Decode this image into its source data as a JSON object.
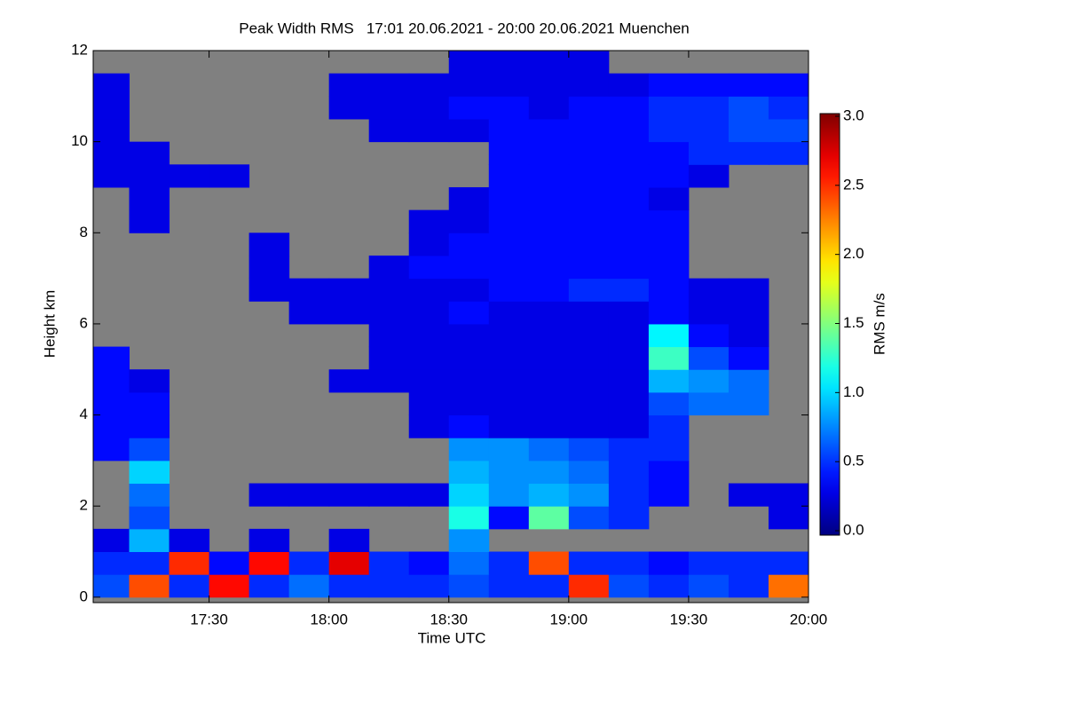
{
  "chart_data": {
    "type": "heatmap",
    "title": "Peak Width RMS   17:01 20.06.2021 - 20:00 20.06.2021 Muenchen",
    "x_label": "Time UTC",
    "y_label": "Height km",
    "colormap": "jet",
    "missing_color": "#808080",
    "xlim": [
      17.0167,
      20.0
    ],
    "xticks": [
      {
        "value": 17.5,
        "label": "17:30"
      },
      {
        "value": 18.0,
        "label": "18:00"
      },
      {
        "value": 18.5,
        "label": "18:30"
      },
      {
        "value": 19.0,
        "label": "19:00"
      },
      {
        "value": 19.5,
        "label": "19:30"
      },
      {
        "value": 20.0,
        "label": "20:00"
      }
    ],
    "ylim": [
      -0.12,
      12
    ],
    "yticks": [
      0,
      2,
      4,
      6,
      8,
      10,
      12
    ],
    "x": [
      17.0833,
      17.25,
      17.4167,
      17.5833,
      17.75,
      17.9167,
      18.0833,
      18.25,
      18.4167,
      18.5833,
      18.75,
      18.9167,
      19.0833,
      19.25,
      19.4167,
      19.5833,
      19.75,
      19.9167
    ],
    "y": [
      0.25,
      0.75,
      1.25,
      1.75,
      2.25,
      2.75,
      3.25,
      3.75,
      4.25,
      4.75,
      5.25,
      5.75,
      6.25,
      6.75,
      7.25,
      7.75,
      8.25,
      8.75,
      9.25,
      9.75,
      10.25,
      10.75,
      11.25,
      11.75
    ],
    "z": [
      [
        0.6,
        2.4,
        0.5,
        2.6,
        0.5,
        0.7,
        0.5,
        0.5,
        0.5,
        0.6,
        0.5,
        0.5,
        2.5,
        0.6,
        0.5,
        0.6,
        0.5,
        2.3
      ],
      [
        0.5,
        0.5,
        2.5,
        0.4,
        2.6,
        0.5,
        2.7,
        0.5,
        0.4,
        0.7,
        0.5,
        2.4,
        0.5,
        0.5,
        0.4,
        0.5,
        0.5,
        0.5
      ],
      [
        0.3,
        0.9,
        0.3,
        null,
        0.3,
        null,
        0.3,
        null,
        null,
        0.8,
        null,
        null,
        null,
        null,
        null,
        null,
        null,
        null
      ],
      [
        null,
        0.6,
        null,
        null,
        null,
        null,
        null,
        null,
        null,
        1.2,
        0.4,
        1.4,
        0.6,
        0.5,
        null,
        null,
        null,
        0.3
      ],
      [
        null,
        0.7,
        null,
        null,
        0.3,
        0.3,
        0.3,
        0.3,
        0.3,
        1.0,
        0.8,
        0.9,
        0.8,
        0.5,
        0.4,
        null,
        0.3,
        0.3
      ],
      [
        null,
        1.0,
        null,
        null,
        null,
        null,
        null,
        null,
        null,
        0.9,
        0.8,
        0.8,
        0.7,
        0.5,
        0.4,
        null,
        null,
        null
      ],
      [
        0.4,
        0.6,
        null,
        null,
        null,
        null,
        null,
        null,
        null,
        0.8,
        0.8,
        0.7,
        0.6,
        0.5,
        0.5,
        null,
        null,
        null
      ],
      [
        0.4,
        0.4,
        null,
        null,
        null,
        null,
        null,
        null,
        0.3,
        0.4,
        0.3,
        0.3,
        0.3,
        0.3,
        0.5,
        null,
        null,
        null
      ],
      [
        0.4,
        0.4,
        null,
        null,
        null,
        null,
        null,
        null,
        0.3,
        0.3,
        0.3,
        0.3,
        0.3,
        0.3,
        0.6,
        0.7,
        0.7,
        null
      ],
      [
        0.4,
        0.3,
        null,
        null,
        null,
        null,
        0.3,
        0.3,
        0.3,
        0.3,
        0.3,
        0.3,
        0.3,
        0.3,
        0.9,
        0.8,
        0.7,
        null
      ],
      [
        0.4,
        null,
        null,
        null,
        null,
        null,
        null,
        0.3,
        0.3,
        0.3,
        0.3,
        0.3,
        0.3,
        0.3,
        1.3,
        0.6,
        0.4,
        null
      ],
      [
        null,
        null,
        null,
        null,
        null,
        null,
        null,
        0.3,
        0.3,
        0.3,
        0.3,
        0.3,
        0.3,
        0.3,
        1.1,
        0.4,
        0.3,
        null
      ],
      [
        null,
        null,
        null,
        null,
        null,
        0.3,
        0.3,
        0.3,
        0.3,
        0.4,
        0.3,
        0.3,
        0.3,
        0.3,
        0.4,
        0.3,
        0.3,
        null
      ],
      [
        null,
        null,
        null,
        null,
        0.3,
        0.3,
        0.3,
        0.3,
        0.3,
        0.3,
        0.4,
        0.4,
        0.5,
        0.5,
        0.4,
        0.3,
        0.3,
        null
      ],
      [
        null,
        null,
        null,
        null,
        0.3,
        null,
        null,
        0.3,
        0.4,
        0.4,
        0.4,
        0.4,
        0.4,
        0.4,
        0.4,
        null,
        null,
        null
      ],
      [
        null,
        null,
        null,
        null,
        0.3,
        null,
        null,
        null,
        0.3,
        0.4,
        0.4,
        0.4,
        0.4,
        0.4,
        0.4,
        null,
        null,
        null
      ],
      [
        null,
        0.3,
        null,
        null,
        null,
        null,
        null,
        null,
        0.3,
        0.3,
        0.4,
        0.4,
        0.4,
        0.4,
        0.4,
        null,
        null,
        null
      ],
      [
        null,
        0.3,
        null,
        null,
        null,
        null,
        null,
        null,
        null,
        0.3,
        0.4,
        0.4,
        0.4,
        0.4,
        0.3,
        null,
        null,
        null
      ],
      [
        0.3,
        0.3,
        0.3,
        0.3,
        null,
        null,
        null,
        null,
        null,
        null,
        0.4,
        0.4,
        0.4,
        0.4,
        0.4,
        0.3,
        null,
        null
      ],
      [
        0.3,
        0.3,
        null,
        null,
        null,
        null,
        null,
        null,
        null,
        null,
        0.4,
        0.4,
        0.4,
        0.4,
        0.4,
        0.5,
        0.5,
        0.5
      ],
      [
        0.3,
        null,
        null,
        null,
        null,
        null,
        null,
        0.3,
        0.3,
        0.3,
        0.4,
        0.4,
        0.4,
        0.4,
        0.5,
        0.5,
        0.6,
        0.6
      ],
      [
        0.3,
        null,
        null,
        null,
        null,
        null,
        0.3,
        0.3,
        0.3,
        0.4,
        0.4,
        0.3,
        0.4,
        0.4,
        0.5,
        0.5,
        0.6,
        0.5
      ],
      [
        0.3,
        null,
        null,
        null,
        null,
        null,
        0.3,
        0.3,
        0.3,
        0.3,
        0.3,
        0.3,
        0.3,
        0.3,
        0.4,
        0.4,
        0.4,
        0.4
      ],
      [
        null,
        null,
        null,
        null,
        null,
        null,
        null,
        null,
        null,
        0.3,
        0.3,
        0.3,
        0.3,
        null,
        null,
        null,
        null,
        null
      ]
    ],
    "colorbar": {
      "label": "RMS m/s",
      "lim": [
        0,
        3
      ],
      "ticks": [
        {
          "value": 0,
          "label": "0.0"
        },
        {
          "value": 0.5,
          "label": "0.5"
        },
        {
          "value": 1,
          "label": "1.0"
        },
        {
          "value": 1.5,
          "label": "1.5"
        },
        {
          "value": 2,
          "label": "2.0"
        },
        {
          "value": 2.5,
          "label": "2.5"
        },
        {
          "value": 3,
          "label": "3.0"
        }
      ]
    }
  }
}
